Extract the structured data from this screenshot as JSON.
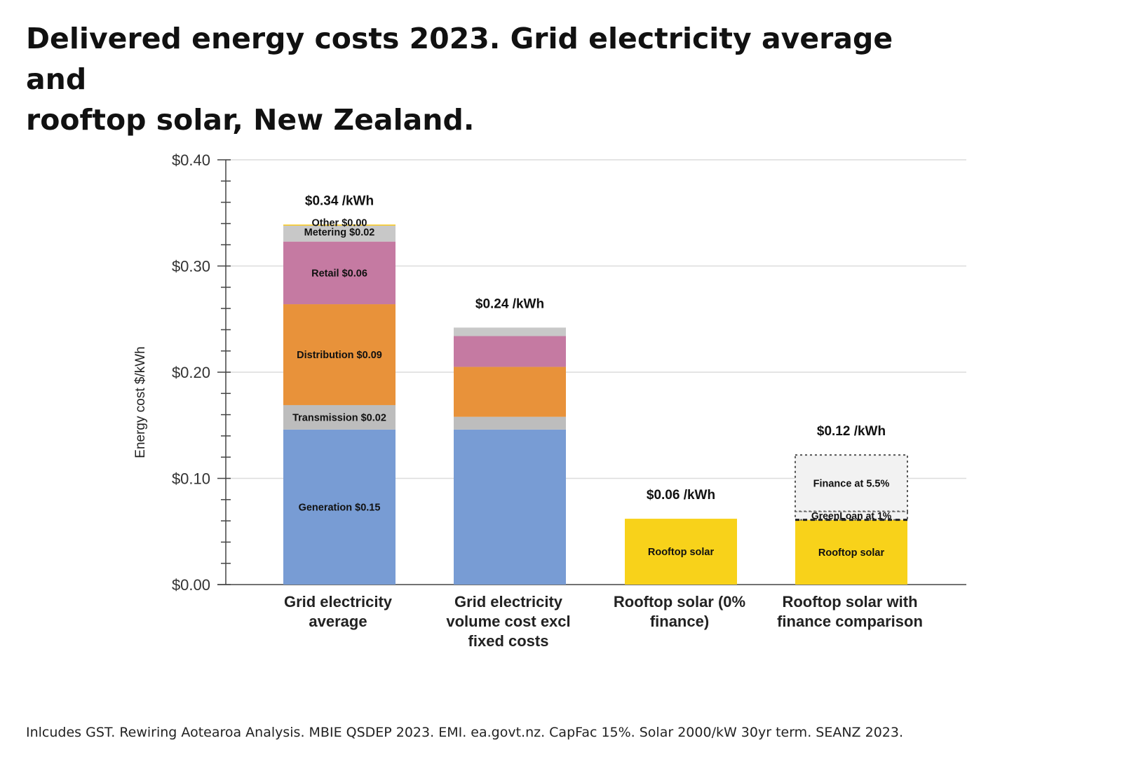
{
  "title_line1": "Delivered energy costs 2023. Grid electricity average and",
  "title_line2": "rooftop solar, New Zealand.",
  "footer": "Inlcudes GST. Rewiring Aotearoa Analysis. MBIE QSDEP 2023. EMI. ea.govt.nz. CapFac 15%. Solar 2000/kW 30yr term. SEANZ 2023.",
  "chart_data": {
    "type": "bar",
    "stacked": true,
    "title": "Delivered energy costs 2023. Grid electricity average and rooftop solar, New Zealand.",
    "ylabel": "Energy cost $/kWh",
    "xlabel": "",
    "ylim": [
      0,
      0.4
    ],
    "yticks": [
      {
        "value": 0.0,
        "label": "$0.00"
      },
      {
        "value": 0.1,
        "label": "$0.10"
      },
      {
        "value": 0.2,
        "label": "$0.20"
      },
      {
        "value": 0.3,
        "label": "$0.30"
      },
      {
        "value": 0.4,
        "label": "$0.40"
      }
    ],
    "grid": true,
    "categories": [
      {
        "id": "grid-avg",
        "lines": [
          "Grid electricity",
          "average"
        ],
        "total_label": "$0.34 /kWh",
        "total": 0.339
      },
      {
        "id": "grid-volume",
        "lines": [
          "Grid electricity",
          "volume cost excl",
          "fixed costs"
        ],
        "total_label": "$0.24 /kWh",
        "total": 0.242
      },
      {
        "id": "solar-0",
        "lines": [
          "Rooftop solar (0%",
          "finance)"
        ],
        "total_label": "$0.06 /kWh",
        "total": 0.062
      },
      {
        "id": "solar-finance",
        "lines": [
          "Rooftop solar with",
          "finance comparison"
        ],
        "total_label": "$0.12 /kWh",
        "total": 0.122
      }
    ],
    "bars": [
      {
        "category": "grid-avg",
        "segments": [
          {
            "name": "Generation",
            "value": 0.146,
            "color": "#789cd4",
            "label": "Generation $0.15"
          },
          {
            "name": "Transmission",
            "value": 0.023,
            "color": "#bdbdbd",
            "label": "Transmission $0.02"
          },
          {
            "name": "Distribution",
            "value": 0.095,
            "color": "#e8923a",
            "label": "Distribution $0.09"
          },
          {
            "name": "Retail",
            "value": 0.059,
            "color": "#c57aa2",
            "label": "Retail $0.06"
          },
          {
            "name": "Metering",
            "value": 0.015,
            "color": "#c8c8c8",
            "label": "Metering $0.02"
          },
          {
            "name": "Other",
            "value": 0.001,
            "color": "#f5c518",
            "label": "Other $0.00"
          }
        ]
      },
      {
        "category": "grid-volume",
        "segments": [
          {
            "name": "Generation",
            "value": 0.146,
            "color": "#789cd4",
            "label": ""
          },
          {
            "name": "Transmission",
            "value": 0.012,
            "color": "#bdbdbd",
            "label": ""
          },
          {
            "name": "Distribution",
            "value": 0.047,
            "color": "#e8923a",
            "label": ""
          },
          {
            "name": "Retail",
            "value": 0.029,
            "color": "#c57aa2",
            "label": ""
          },
          {
            "name": "Metering",
            "value": 0.008,
            "color": "#c8c8c8",
            "label": ""
          }
        ]
      },
      {
        "category": "solar-0",
        "segments": [
          {
            "name": "Rooftop solar",
            "value": 0.062,
            "color": "#f8d21a",
            "label": "Rooftop solar"
          }
        ]
      },
      {
        "category": "solar-finance",
        "segments": [
          {
            "name": "Rooftop solar",
            "value": 0.061,
            "color": "#f8d21a",
            "label": "Rooftop solar"
          },
          {
            "name": "GreenLoan at 1%",
            "value": 0.008,
            "color": "#f2f2f2",
            "label": "GreenLoan at 1%",
            "dashed": true
          },
          {
            "name": "Finance at 5.5%",
            "value": 0.053,
            "color": "#f2f2f2",
            "label": "Finance at 5.5%",
            "dashed": true
          }
        ]
      }
    ]
  }
}
